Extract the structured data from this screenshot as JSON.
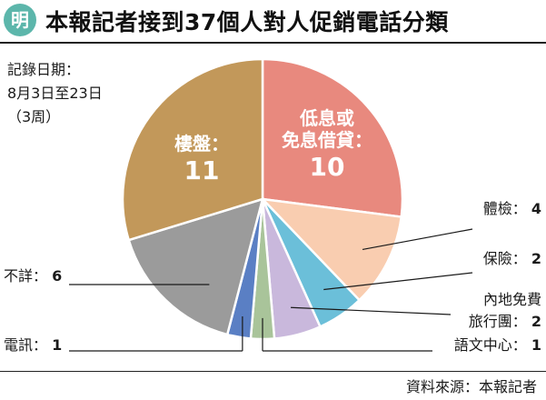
{
  "header": {
    "logo_text": "明",
    "title": "本報記者接到37個人對人促銷電話分類"
  },
  "note": {
    "lines": [
      "記錄日期：",
      "8月3日至23日",
      "（3周）"
    ]
  },
  "source": "資料來源：本報記者",
  "chart_data": {
    "type": "pie",
    "title": "本報記者接到37個人對人促銷電話分類",
    "total": 37,
    "slices": [
      {
        "label": "低息或免息借貸",
        "label_lines": [
          "低息或",
          "免息借貸："
        ],
        "value": 10,
        "value_text": "10",
        "color": "#e8897e"
      },
      {
        "label": "體檢",
        "value": 4,
        "value_text": "4",
        "color": "#f9cdb0"
      },
      {
        "label": "保險",
        "value": 2,
        "value_text": "2",
        "color": "#6bbfd9"
      },
      {
        "label": "內地免費旅行團",
        "label_lines": [
          "內地免費",
          "旅行團："
        ],
        "value": 2,
        "value_text": "2",
        "color": "#c9b8dc"
      },
      {
        "label": "語文中心",
        "value": 1,
        "value_text": "1",
        "color": "#a9c49a"
      },
      {
        "label": "電訊",
        "value": 1,
        "value_text": "1",
        "color": "#5a7fc4"
      },
      {
        "label": "不詳",
        "value": 6,
        "value_text": "6",
        "color": "#9b9b9b"
      },
      {
        "label": "樓盤",
        "label_lines": [
          "樓盤："
        ],
        "value": 11,
        "value_text": "11",
        "color": "#c2985a"
      }
    ],
    "start_angle_deg": 0,
    "direction": "clockwise",
    "sep": "："
  }
}
